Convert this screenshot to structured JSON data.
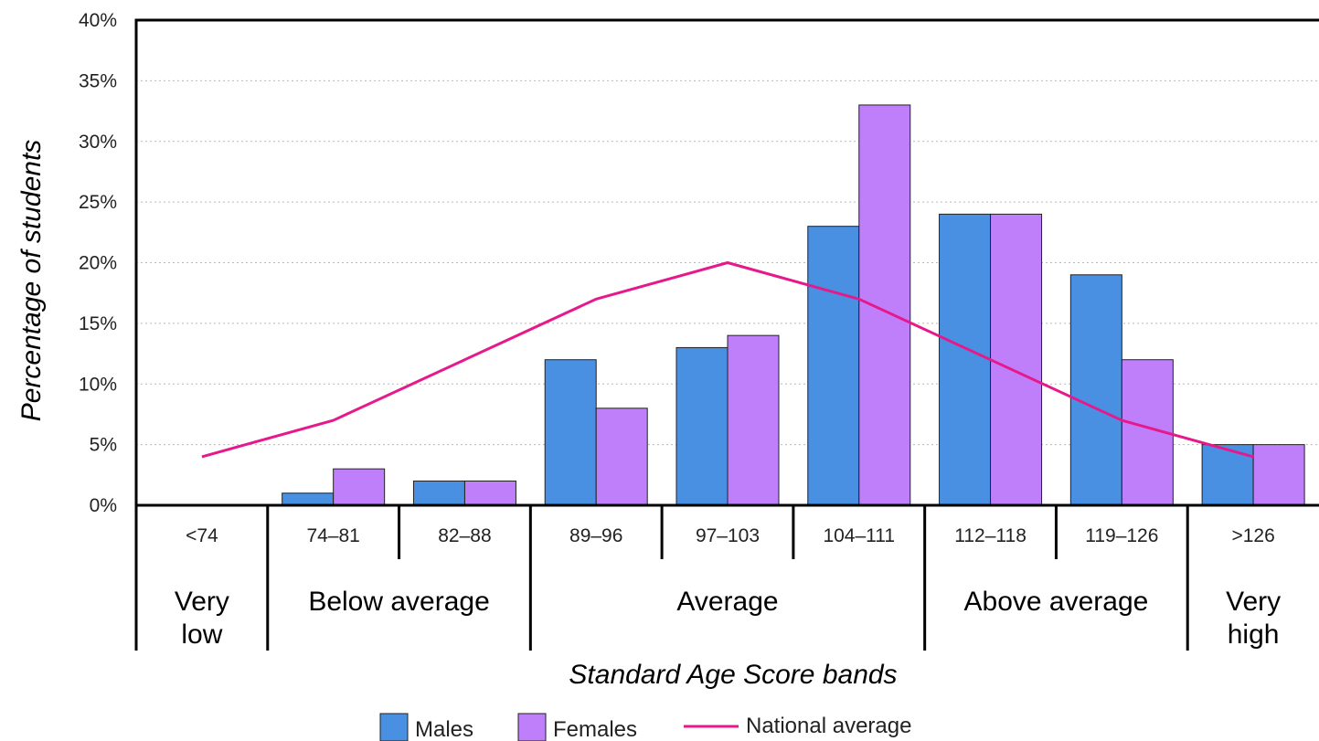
{
  "chart_data": {
    "type": "bar",
    "xlabel": "Standard Age Score bands",
    "ylabel": "Percentage of students",
    "ylim": [
      0,
      40
    ],
    "y_ticks": [
      "0%",
      "5%",
      "10%",
      "15%",
      "20%",
      "25%",
      "30%",
      "35%",
      "40%"
    ],
    "grid": true,
    "legend_position": "bottom",
    "categories": [
      "<74",
      "74–81",
      "82–88",
      "89–96",
      "97–103",
      "104–111",
      "112–118",
      "119–126",
      ">126"
    ],
    "series": [
      {
        "name": "Males",
        "type": "bar",
        "color": "#4a90e2",
        "values": [
          0,
          1,
          2,
          12,
          13,
          23,
          24,
          19,
          5
        ]
      },
      {
        "name": "Females",
        "type": "bar",
        "color": "#bf7ffb",
        "values": [
          0,
          3,
          2,
          8,
          14,
          33,
          24,
          12,
          5
        ]
      },
      {
        "name": "National average",
        "type": "line",
        "color": "#e6198c",
        "values": [
          4,
          7,
          12,
          17,
          20,
          17,
          12,
          7,
          4
        ]
      }
    ],
    "groups": [
      {
        "label_lines": [
          "Very",
          "low"
        ],
        "span": [
          0,
          0
        ]
      },
      {
        "label_lines": [
          "Below average"
        ],
        "span": [
          1,
          2
        ]
      },
      {
        "label_lines": [
          "Average"
        ],
        "span": [
          3,
          5
        ]
      },
      {
        "label_lines": [
          "Above average"
        ],
        "span": [
          6,
          7
        ]
      },
      {
        "label_lines": [
          "Very",
          "high"
        ],
        "span": [
          8,
          8
        ]
      }
    ]
  }
}
